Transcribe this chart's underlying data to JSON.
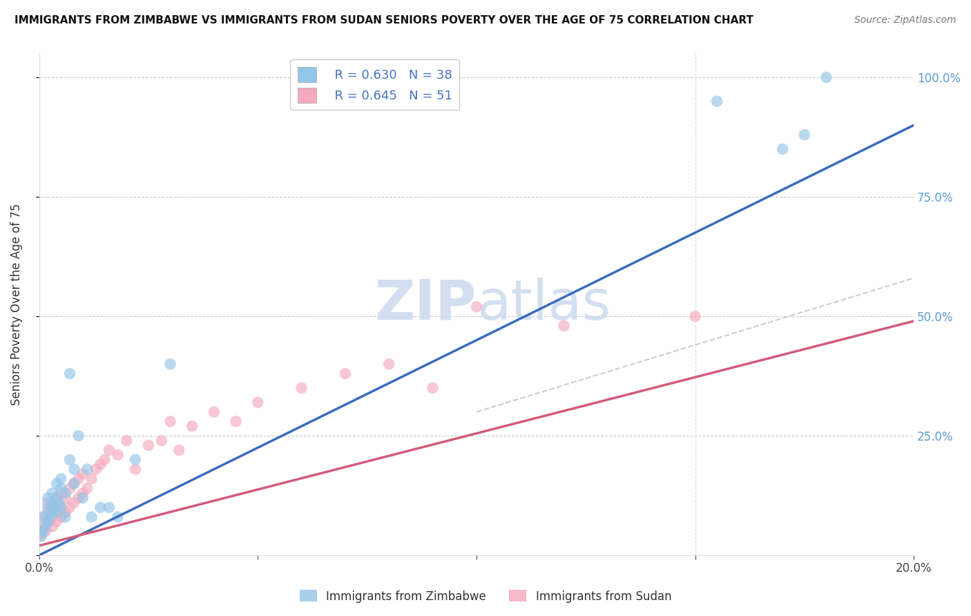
{
  "title": "IMMIGRANTS FROM ZIMBABWE VS IMMIGRANTS FROM SUDAN SENIORS POVERTY OVER THE AGE OF 75 CORRELATION CHART",
  "source": "Source: ZipAtlas.com",
  "ylabel": "Seniors Poverty Over the Age of 75",
  "xlim": [
    0.0,
    0.2
  ],
  "ylim": [
    0.0,
    1.05
  ],
  "legend_labels": [
    "Immigrants from Zimbabwe",
    "Immigrants from Sudan"
  ],
  "legend_R": [
    0.63,
    0.645
  ],
  "legend_N": [
    38,
    51
  ],
  "blue_color": "#92c5e8",
  "pink_color": "#f4a9be",
  "line_blue": "#3a6bbf",
  "line_pink": "#d45a7a",
  "line_ci": "#cccccc",
  "watermark_color": "#c8d8ee",
  "background_color": "#ffffff",
  "grid_color": "#cccccc",
  "zimbabwe_x": [
    0.0005,
    0.001,
    0.001,
    0.0015,
    0.002,
    0.002,
    0.002,
    0.0025,
    0.003,
    0.003,
    0.003,
    0.0035,
    0.004,
    0.004,
    0.004,
    0.0045,
    0.005,
    0.005,
    0.005,
    0.006,
    0.006,
    0.007,
    0.007,
    0.008,
    0.008,
    0.009,
    0.01,
    0.011,
    0.012,
    0.014,
    0.016,
    0.018,
    0.022,
    0.03,
    0.155,
    0.17,
    0.175,
    0.18
  ],
  "zimbabwe_y": [
    0.04,
    0.05,
    0.08,
    0.06,
    0.07,
    0.1,
    0.12,
    0.08,
    0.09,
    0.11,
    0.13,
    0.1,
    0.09,
    0.12,
    0.15,
    0.11,
    0.1,
    0.14,
    0.16,
    0.08,
    0.13,
    0.38,
    0.2,
    0.15,
    0.18,
    0.25,
    0.12,
    0.18,
    0.08,
    0.1,
    0.1,
    0.08,
    0.2,
    0.4,
    0.95,
    0.85,
    0.88,
    1.0
  ],
  "sudan_x": [
    0.0003,
    0.0005,
    0.001,
    0.001,
    0.0015,
    0.002,
    0.002,
    0.002,
    0.003,
    0.003,
    0.003,
    0.004,
    0.004,
    0.004,
    0.005,
    0.005,
    0.005,
    0.006,
    0.006,
    0.007,
    0.007,
    0.008,
    0.008,
    0.009,
    0.009,
    0.01,
    0.01,
    0.011,
    0.012,
    0.013,
    0.014,
    0.015,
    0.016,
    0.018,
    0.02,
    0.022,
    0.025,
    0.028,
    0.03,
    0.032,
    0.035,
    0.04,
    0.045,
    0.05,
    0.06,
    0.07,
    0.08,
    0.09,
    0.1,
    0.12,
    0.15
  ],
  "sudan_y": [
    0.04,
    0.05,
    0.06,
    0.08,
    0.05,
    0.07,
    0.09,
    0.11,
    0.06,
    0.08,
    0.1,
    0.07,
    0.09,
    0.12,
    0.08,
    0.1,
    0.13,
    0.09,
    0.12,
    0.1,
    0.14,
    0.11,
    0.15,
    0.12,
    0.16,
    0.13,
    0.17,
    0.14,
    0.16,
    0.18,
    0.19,
    0.2,
    0.22,
    0.21,
    0.24,
    0.18,
    0.23,
    0.24,
    0.28,
    0.22,
    0.27,
    0.3,
    0.28,
    0.32,
    0.35,
    0.38,
    0.4,
    0.35,
    0.52,
    0.48,
    0.5
  ],
  "blue_line_x0": 0.0,
  "blue_line_y0": 0.0,
  "blue_line_x1": 0.2,
  "blue_line_y1": 0.9,
  "pink_line_x0": 0.0,
  "pink_line_y0": 0.02,
  "pink_line_x1": 0.2,
  "pink_line_y1": 0.49,
  "ci_line_x0": 0.1,
  "ci_line_y0": 0.3,
  "ci_line_x1": 0.2,
  "ci_line_y1": 0.58
}
